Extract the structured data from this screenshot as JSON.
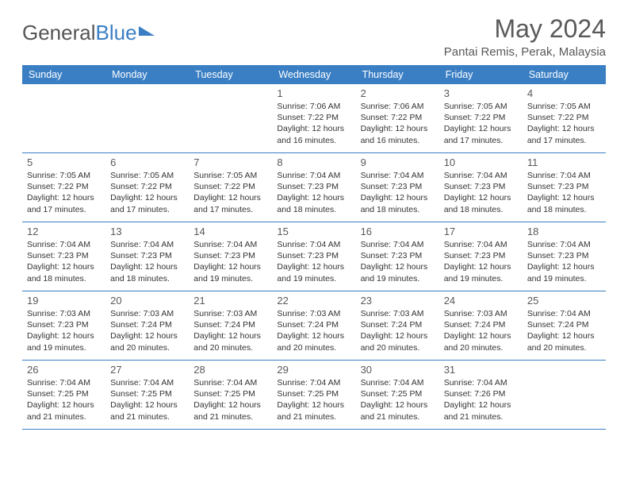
{
  "logo": {
    "part1": "General",
    "part2": "Blue"
  },
  "title": "May 2024",
  "location": "Pantai Remis, Perak, Malaysia",
  "weekday_header_bg": "#3a7fc4",
  "weekday_header_fg": "#ffffff",
  "border_color": "#3a7fc4",
  "text_color": "#595959",
  "info_text_color": "#333333",
  "weekdays": [
    "Sunday",
    "Monday",
    "Tuesday",
    "Wednesday",
    "Thursday",
    "Friday",
    "Saturday"
  ],
  "weeks": [
    [
      {
        "n": "",
        "sr": "",
        "ss": "",
        "dl": ""
      },
      {
        "n": "",
        "sr": "",
        "ss": "",
        "dl": ""
      },
      {
        "n": "",
        "sr": "",
        "ss": "",
        "dl": ""
      },
      {
        "n": "1",
        "sr": "7:06 AM",
        "ss": "7:22 PM",
        "dl": "12 hours and 16 minutes."
      },
      {
        "n": "2",
        "sr": "7:06 AM",
        "ss": "7:22 PM",
        "dl": "12 hours and 16 minutes."
      },
      {
        "n": "3",
        "sr": "7:05 AM",
        "ss": "7:22 PM",
        "dl": "12 hours and 17 minutes."
      },
      {
        "n": "4",
        "sr": "7:05 AM",
        "ss": "7:22 PM",
        "dl": "12 hours and 17 minutes."
      }
    ],
    [
      {
        "n": "5",
        "sr": "7:05 AM",
        "ss": "7:22 PM",
        "dl": "12 hours and 17 minutes."
      },
      {
        "n": "6",
        "sr": "7:05 AM",
        "ss": "7:22 PM",
        "dl": "12 hours and 17 minutes."
      },
      {
        "n": "7",
        "sr": "7:05 AM",
        "ss": "7:22 PM",
        "dl": "12 hours and 17 minutes."
      },
      {
        "n": "8",
        "sr": "7:04 AM",
        "ss": "7:23 PM",
        "dl": "12 hours and 18 minutes."
      },
      {
        "n": "9",
        "sr": "7:04 AM",
        "ss": "7:23 PM",
        "dl": "12 hours and 18 minutes."
      },
      {
        "n": "10",
        "sr": "7:04 AM",
        "ss": "7:23 PM",
        "dl": "12 hours and 18 minutes."
      },
      {
        "n": "11",
        "sr": "7:04 AM",
        "ss": "7:23 PM",
        "dl": "12 hours and 18 minutes."
      }
    ],
    [
      {
        "n": "12",
        "sr": "7:04 AM",
        "ss": "7:23 PM",
        "dl": "12 hours and 18 minutes."
      },
      {
        "n": "13",
        "sr": "7:04 AM",
        "ss": "7:23 PM",
        "dl": "12 hours and 18 minutes."
      },
      {
        "n": "14",
        "sr": "7:04 AM",
        "ss": "7:23 PM",
        "dl": "12 hours and 19 minutes."
      },
      {
        "n": "15",
        "sr": "7:04 AM",
        "ss": "7:23 PM",
        "dl": "12 hours and 19 minutes."
      },
      {
        "n": "16",
        "sr": "7:04 AM",
        "ss": "7:23 PM",
        "dl": "12 hours and 19 minutes."
      },
      {
        "n": "17",
        "sr": "7:04 AM",
        "ss": "7:23 PM",
        "dl": "12 hours and 19 minutes."
      },
      {
        "n": "18",
        "sr": "7:04 AM",
        "ss": "7:23 PM",
        "dl": "12 hours and 19 minutes."
      }
    ],
    [
      {
        "n": "19",
        "sr": "7:03 AM",
        "ss": "7:23 PM",
        "dl": "12 hours and 19 minutes."
      },
      {
        "n": "20",
        "sr": "7:03 AM",
        "ss": "7:24 PM",
        "dl": "12 hours and 20 minutes."
      },
      {
        "n": "21",
        "sr": "7:03 AM",
        "ss": "7:24 PM",
        "dl": "12 hours and 20 minutes."
      },
      {
        "n": "22",
        "sr": "7:03 AM",
        "ss": "7:24 PM",
        "dl": "12 hours and 20 minutes."
      },
      {
        "n": "23",
        "sr": "7:03 AM",
        "ss": "7:24 PM",
        "dl": "12 hours and 20 minutes."
      },
      {
        "n": "24",
        "sr": "7:03 AM",
        "ss": "7:24 PM",
        "dl": "12 hours and 20 minutes."
      },
      {
        "n": "25",
        "sr": "7:04 AM",
        "ss": "7:24 PM",
        "dl": "12 hours and 20 minutes."
      }
    ],
    [
      {
        "n": "26",
        "sr": "7:04 AM",
        "ss": "7:25 PM",
        "dl": "12 hours and 21 minutes."
      },
      {
        "n": "27",
        "sr": "7:04 AM",
        "ss": "7:25 PM",
        "dl": "12 hours and 21 minutes."
      },
      {
        "n": "28",
        "sr": "7:04 AM",
        "ss": "7:25 PM",
        "dl": "12 hours and 21 minutes."
      },
      {
        "n": "29",
        "sr": "7:04 AM",
        "ss": "7:25 PM",
        "dl": "12 hours and 21 minutes."
      },
      {
        "n": "30",
        "sr": "7:04 AM",
        "ss": "7:25 PM",
        "dl": "12 hours and 21 minutes."
      },
      {
        "n": "31",
        "sr": "7:04 AM",
        "ss": "7:26 PM",
        "dl": "12 hours and 21 minutes."
      },
      {
        "n": "",
        "sr": "",
        "ss": "",
        "dl": ""
      }
    ]
  ],
  "labels": {
    "sunrise": "Sunrise:",
    "sunset": "Sunset:",
    "daylight": "Daylight:"
  }
}
